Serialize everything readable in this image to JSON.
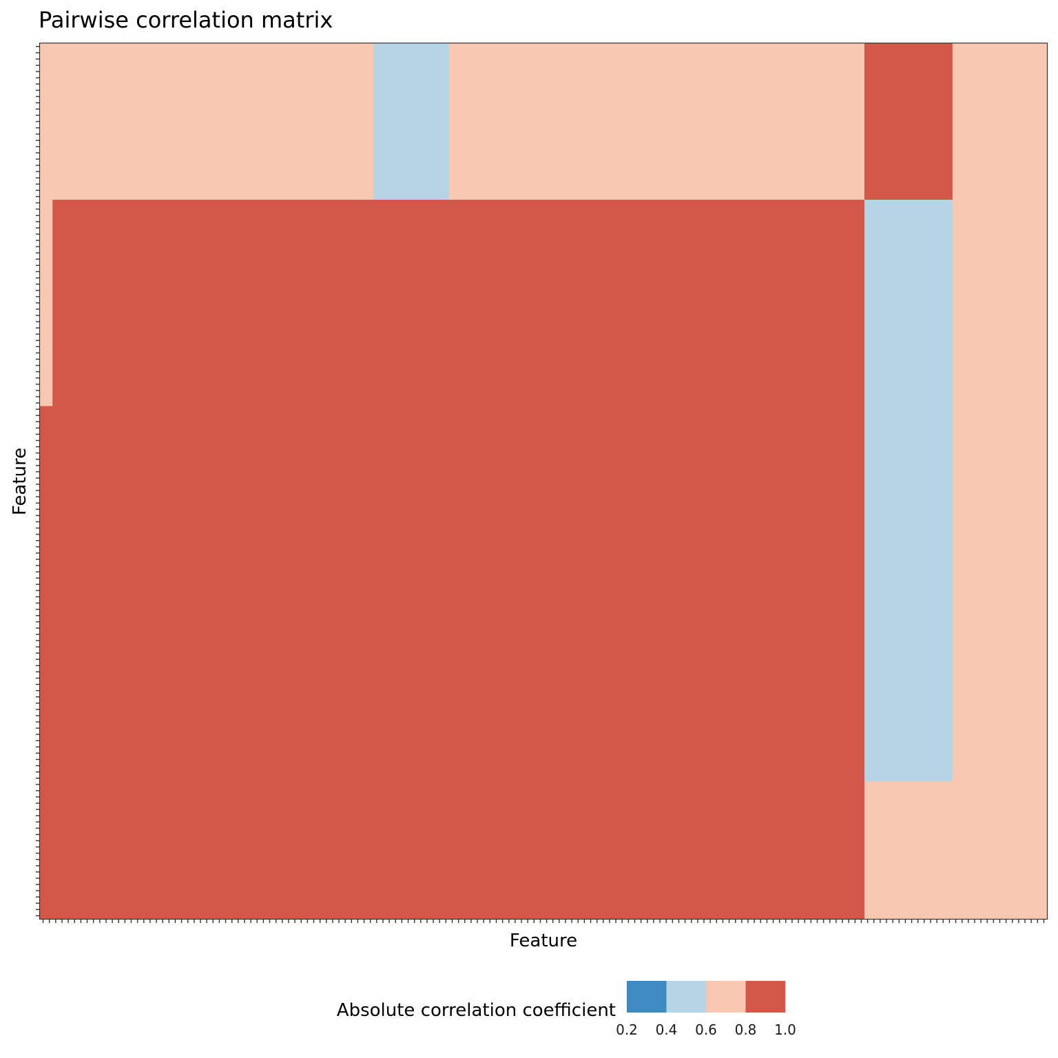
{
  "chart_data": {
    "type": "heatmap",
    "title": "Pairwise correlation matrix",
    "xlabel": "Feature",
    "ylabel": "Feature",
    "n_features": 160,
    "grid": false,
    "legend": {
      "title": "Absolute correlation coefficient",
      "placement": "bottom",
      "breaks": [
        "0.2",
        "0.4",
        "0.6",
        "0.8",
        "1.0"
      ],
      "bins": [
        {
          "range": [
            0.2,
            0.4
          ],
          "color": "#3f8bc1"
        },
        {
          "range": [
            0.4,
            0.6
          ],
          "color": "#b5d5e6"
        },
        {
          "range": [
            0.6,
            0.8
          ],
          "color": "#f9c8b0"
        },
        {
          "range": [
            0.8,
            1.0
          ],
          "color": "#d35849"
        }
      ]
    },
    "columns": [
      {
        "from": 1,
        "to": 2
      },
      {
        "from": 3,
        "to": 53
      },
      {
        "from": 54,
        "to": 65
      },
      {
        "from": 66,
        "to": 93
      },
      {
        "from": 94,
        "to": 131
      },
      {
        "from": 132,
        "to": 145
      },
      {
        "from": 146,
        "to": 160
      }
    ],
    "rows": [
      {
        "from": 1,
        "to": 25,
        "cells": [
          "0.7",
          "0.7",
          "0.5",
          "0.7",
          "0.7",
          "0.9",
          "0.7"
        ]
      },
      {
        "from": 26,
        "to": 58,
        "cells": [
          "0.7",
          "0.9",
          "0.9",
          "0.9",
          "0.9",
          "0.5",
          "0.7"
        ]
      },
      {
        "from": 59,
        "to": 118,
        "cells": [
          "0.9",
          "0.9",
          "0.9",
          "0.9",
          "0.9",
          "0.5",
          "0.7"
        ]
      },
      {
        "from": 119,
        "to": 140,
        "cells": [
          "0.9",
          "0.9",
          "0.9",
          "0.9",
          "0.9",
          "0.7",
          "0.7"
        ]
      }
    ]
  }
}
